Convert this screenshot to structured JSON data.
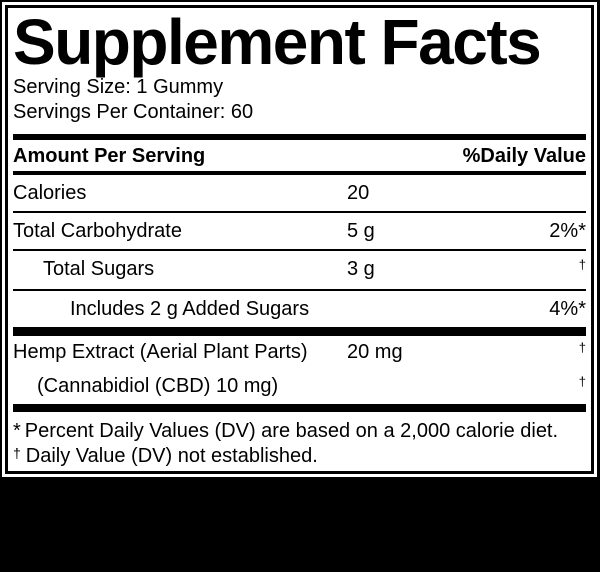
{
  "label": {
    "title": "Supplement Facts",
    "serving_size": "Serving Size: 1 Gummy",
    "servings_per_container": "Servings Per Container: 60",
    "header": {
      "amount_per_serving": "Amount Per Serving",
      "daily_value": "%Daily Value"
    },
    "rows": [
      {
        "name": "Calories",
        "amount": "20",
        "dv": ""
      },
      {
        "name": "Total Carbohydrate",
        "amount": "5 g",
        "dv": "2%*"
      },
      {
        "name": "Total Sugars",
        "amount": "3 g",
        "dv": "†"
      },
      {
        "name": "Includes 2 g Added Sugars",
        "amount": "",
        "dv": "4%*"
      },
      {
        "name": "Hemp Extract (Aerial Plant Parts)",
        "amount": "20 mg",
        "dv": "†"
      },
      {
        "name": "(Cannabidiol (CBD) 10 mg)",
        "amount": "",
        "dv": "†"
      }
    ],
    "footnotes": [
      {
        "marker": "*",
        "text": "Percent Daily Values (DV) are based on a 2,000 calorie diet."
      },
      {
        "marker": "†",
        "text": "Daily Value (DV) not established."
      }
    ],
    "colors": {
      "text": "#000000",
      "label_background": "#ffffff",
      "page_background": "#000000",
      "rule_color": "#000000"
    }
  }
}
